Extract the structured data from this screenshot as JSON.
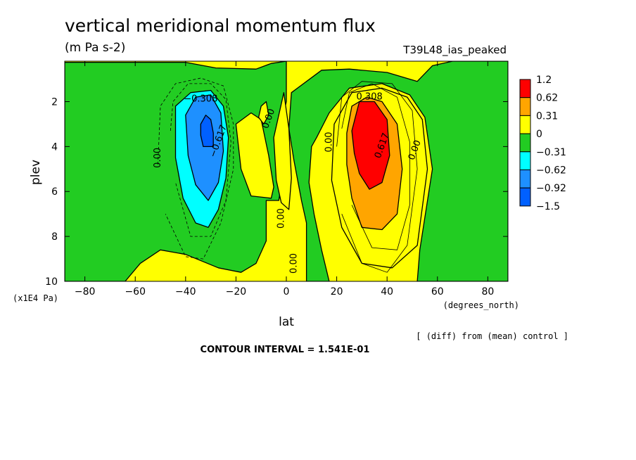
{
  "title": "vertical meridional momentum flux",
  "units": "(m Pa s-2)",
  "experiment": "T39L48_ias_peaked",
  "footer_note": "[ (diff) from (mean) control ]",
  "contour_interval": "CONTOUR INTERVAL = 1.541E-01",
  "chart_data": {
    "type": "heatmap",
    "title": "vertical meridional momentum flux",
    "subtitle": "(m Pa s-2)",
    "xlabel": "lat",
    "x_units": "(degrees_north)",
    "ylabel": "plev",
    "y_units": "(x1E4 Pa)",
    "xlim": [
      -88,
      88
    ],
    "ylim": [
      10,
      0.2
    ],
    "y_inverted": true,
    "x_ticks": [
      -80,
      -60,
      -40,
      -20,
      0,
      20,
      40,
      60,
      80
    ],
    "x_tick_labels": [
      "−80",
      "−60",
      "−40",
      "−20",
      "0",
      "20",
      "40",
      "60",
      "80"
    ],
    "y_ticks": [
      2,
      4,
      6,
      8,
      10
    ],
    "y_tick_labels": [
      "2",
      "4",
      "6",
      "8",
      "10"
    ],
    "colorbar": {
      "boundaries": [
        "1.2",
        "0.62",
        "0.31",
        "0",
        "−0.31",
        "−0.62",
        "−0.92",
        "−1.5"
      ],
      "colors": [
        "#ff0000",
        "#ffa500",
        "#ffff00",
        "#22cc22",
        "#00ffff",
        "#1e90ff",
        "#0060ff"
      ]
    },
    "features": [
      {
        "kind": "positive_max",
        "lat": 32,
        "plev": 3.4,
        "value": 1.2
      },
      {
        "kind": "negative_min",
        "lat": -31,
        "plev": 3.2,
        "value": -1.5
      }
    ],
    "contour_labels": [
      {
        "text": "−0.308",
        "lat": -34,
        "plev": 2.0,
        "rotate": 0
      },
      {
        "text": "−0.617",
        "lat": -26,
        "plev": 3.8,
        "rotate": -70
      },
      {
        "text": "0.00",
        "lat": -50,
        "plev": 4.5,
        "rotate": -90
      },
      {
        "text": "0.00",
        "lat": -6,
        "plev": 2.8,
        "rotate": -70
      },
      {
        "text": "0.308",
        "lat": 33,
        "plev": 1.9,
        "rotate": 0
      },
      {
        "text": "0.617",
        "lat": 39,
        "plev": 4.0,
        "rotate": -70
      },
      {
        "text": "0.00",
        "lat": 18,
        "plev": 3.8,
        "rotate": -90
      },
      {
        "text": "0.00",
        "lat": 52,
        "plev": 4.2,
        "rotate": -70
      },
      {
        "text": "0.00",
        "lat": -1,
        "plev": 7.2,
        "rotate": -90
      },
      {
        "text": "0.00",
        "lat": 4,
        "plev": 9.2,
        "rotate": -90
      }
    ]
  }
}
